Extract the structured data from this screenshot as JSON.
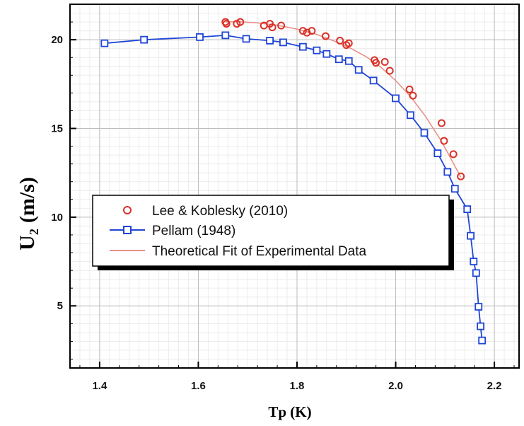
{
  "chart_data": {
    "type": "scatter",
    "xlabel": "Tp (K)",
    "ylabel_main": "U",
    "ylabel_sub": "2",
    "ylabel_unit": "(m/s)",
    "xlim": [
      1.34,
      2.25
    ],
    "ylim": [
      1.5,
      22
    ],
    "xticks": [
      1.4,
      1.6,
      1.8,
      2.0,
      2.2
    ],
    "xtick_labels": [
      "1.4",
      "1.6",
      "1.8",
      "2.0",
      "2.2"
    ],
    "yticks": [
      5,
      10,
      15,
      20
    ],
    "ytick_labels": [
      "5",
      "10",
      "15",
      "20"
    ],
    "grid": true,
    "legend_position": "center-left",
    "series": [
      {
        "name": "Lee & Koblesky (2010)",
        "marker": "circle",
        "color": "#d9322a",
        "x": [
          1.655,
          1.657,
          1.678,
          1.685,
          1.733,
          1.745,
          1.75,
          1.768,
          1.812,
          1.82,
          1.83,
          1.858,
          1.887,
          1.9,
          1.905,
          1.957,
          1.96,
          1.978,
          1.988,
          2.028,
          2.035,
          2.093,
          2.098,
          2.117,
          2.132
        ],
        "y": [
          21.0,
          20.9,
          20.9,
          21.0,
          20.8,
          20.9,
          20.7,
          20.8,
          20.5,
          20.4,
          20.5,
          20.2,
          19.95,
          19.7,
          19.8,
          18.85,
          18.7,
          18.75,
          18.25,
          17.2,
          16.85,
          15.3,
          14.3,
          13.55,
          12.3
        ]
      },
      {
        "name": "Pellam (1948)",
        "marker": "square",
        "color": "#1f45d6",
        "x": [
          1.41,
          1.49,
          1.603,
          1.655,
          1.697,
          1.745,
          1.772,
          1.812,
          1.84,
          1.86,
          1.885,
          1.905,
          1.925,
          1.955,
          2.0,
          2.03,
          2.058,
          2.085,
          2.105,
          2.12,
          2.145,
          2.152,
          2.158,
          2.163,
          2.168,
          2.172,
          2.175
        ],
        "y": [
          19.8,
          20.0,
          20.15,
          20.25,
          20.05,
          19.95,
          19.85,
          19.6,
          19.4,
          19.2,
          18.9,
          18.8,
          18.3,
          17.7,
          16.7,
          15.75,
          14.75,
          13.6,
          12.55,
          11.6,
          10.45,
          8.95,
          7.5,
          6.85,
          4.95,
          3.85,
          3.05
        ]
      },
      {
        "name": "Theoretical Fit of Experimental Data",
        "marker": "line",
        "color": "#e8918a",
        "x": [
          1.655,
          1.68,
          1.72,
          1.76,
          1.8,
          1.84,
          1.88,
          1.91,
          1.94,
          1.97,
          2.0,
          2.03,
          2.06,
          2.09,
          2.11,
          2.132
        ],
        "y": [
          21.0,
          21.02,
          20.95,
          20.82,
          20.6,
          20.3,
          19.88,
          19.5,
          19.05,
          18.45,
          17.7,
          16.8,
          15.7,
          14.4,
          13.4,
          12.25
        ]
      }
    ],
    "legend": [
      {
        "label": "Lee & Koblesky (2010)",
        "marker": "circle",
        "color": "#d9322a"
      },
      {
        "label": "Pellam (1948)",
        "marker": "square-line",
        "color": "#1f45d6"
      },
      {
        "label": "Theoretical Fit of Experimental Data",
        "marker": "line",
        "color": "#e8918a"
      }
    ]
  }
}
